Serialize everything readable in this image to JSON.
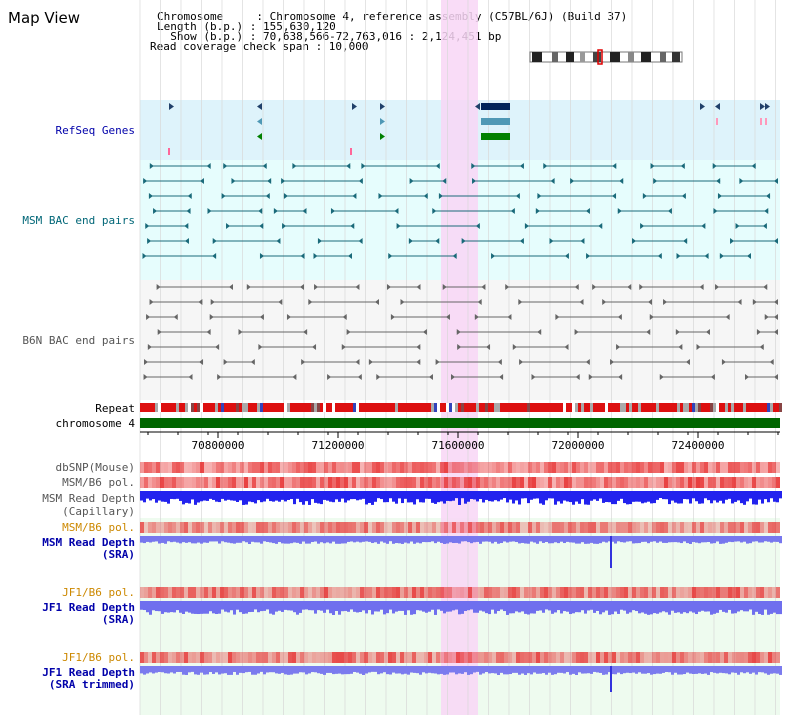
{
  "view": {
    "title": "Map View",
    "header": {
      "line1": "Chromosome     : Chromosome 4, reference assembly (C57BL/6J) (Build 37)",
      "line2": "Length (b.p.) : 155,630,120",
      "line3": "  Show (b.p.) : 70,638,566-72,763,016 : 2,124,451 bp",
      "line4": "Read coverage check span : 10,000"
    }
  },
  "tracks": {
    "refseq": "RefSeq Genes",
    "msm_bac": "MSM BAC end pairs",
    "b6n_bac": "B6N BAC end pairs",
    "repeat": "Repeat",
    "chromosome": "chromosome 4",
    "dbsnp": "dbSNP(Mouse)",
    "msm_b6_pol_1": "MSM/B6 pol.",
    "msm_read_depth_cap_1": "MSM Read Depth",
    "msm_read_depth_cap_2": "(Capillary)",
    "msm_b6_pol_2": "MSM/B6 pol.",
    "msm_read_depth_sra_1": "MSM Read Depth",
    "msm_read_depth_sra_2": "(SRA)",
    "jf1_b6_pol_1": "JF1/B6 pol.",
    "jf1_read_depth_sra_1": "JF1 Read Depth",
    "jf1_read_depth_sra_2": "(SRA)",
    "jf1_b6_pol_2": "JF1/B6 pol.",
    "jf1_read_depth_trim_1": "JF1 Read Depth",
    "jf1_read_depth_trim_2": "(SRA trimmed)"
  },
  "axis": {
    "ticks": [
      "70800000",
      "71200000",
      "71600000",
      "72000000",
      "72400000"
    ]
  },
  "colors": {
    "navy_label": "#0000aa",
    "teal_label": "#006677",
    "gray_label": "#555555",
    "orange_label": "#cc8800",
    "refseq_bg": "#def3fb",
    "msm_bg": "#e6fdfd",
    "highlight": "#f8d6f6",
    "chrom_green": "#006600"
  }
}
